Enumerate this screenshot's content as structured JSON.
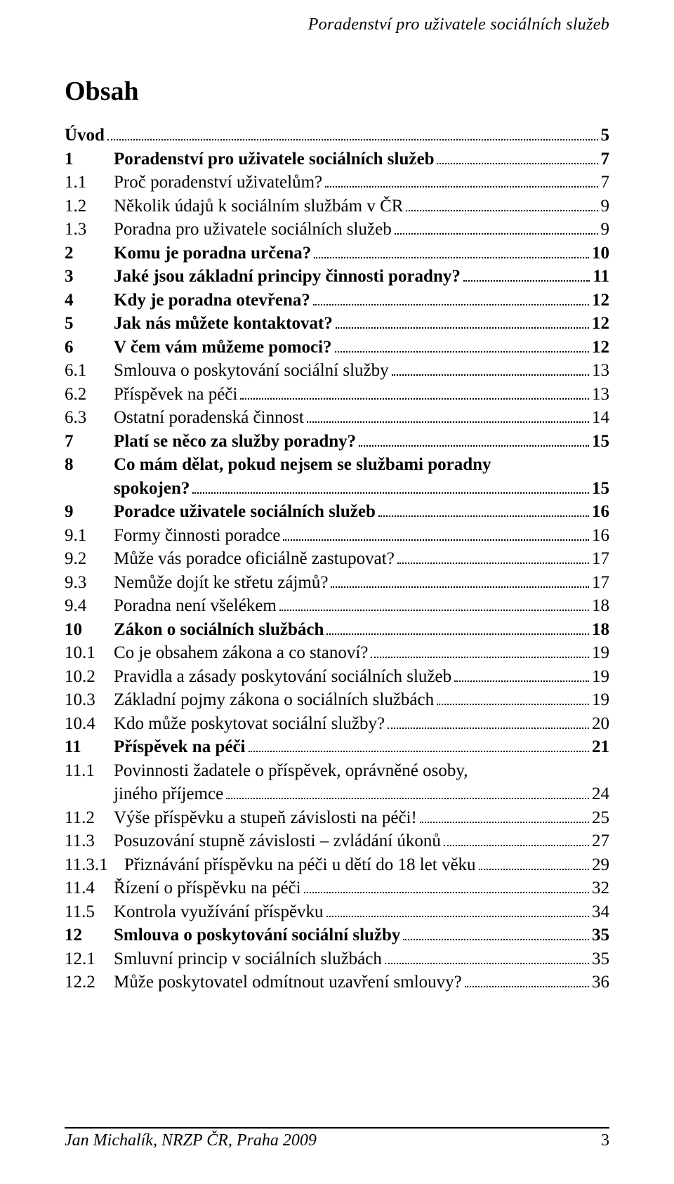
{
  "running_head": "Poradenství pro uživatele sociálních služeb",
  "title": "Obsah",
  "footer": {
    "left": "Jan Michalík, NRZP ČR, Praha 2009",
    "page": "3"
  },
  "toc": [
    {
      "num": "",
      "numClass": "",
      "text": "Úvod",
      "page": "5",
      "bold": true
    },
    {
      "num": "1",
      "numClass": "w-top",
      "text": "Poradenství pro uživatele sociálních služeb",
      "page": "7",
      "bold": true
    },
    {
      "num": "1.1",
      "numClass": "w-sub",
      "text": "Proč poradenství uživatelům?",
      "page": "7",
      "bold": false
    },
    {
      "num": "1.2",
      "numClass": "w-sub",
      "text": "Několik údajů k sociálním službám v ČR",
      "page": "9",
      "bold": false
    },
    {
      "num": "1.3",
      "numClass": "w-sub",
      "text": "Poradna pro uživatele sociálních služeb",
      "page": "9",
      "bold": false
    },
    {
      "num": "2",
      "numClass": "w-top",
      "text": "Komu je poradna určena?",
      "page": "10",
      "bold": true
    },
    {
      "num": "3",
      "numClass": "w-top",
      "text": "Jaké jsou základní principy činnosti poradny?",
      "page": "11",
      "bold": true
    },
    {
      "num": "4",
      "numClass": "w-top",
      "text": "Kdy je poradna otevřena?",
      "page": "12",
      "bold": true
    },
    {
      "num": "5",
      "numClass": "w-top",
      "text": "Jak nás můžete kontaktovat?",
      "page": "12",
      "bold": true
    },
    {
      "num": "6",
      "numClass": "w-top",
      "text": "V čem vám můžeme pomoci?",
      "page": "12",
      "bold": true
    },
    {
      "num": "6.1",
      "numClass": "w-sub",
      "text": "Smlouva o poskytování sociální služby",
      "page": "13",
      "bold": false
    },
    {
      "num": "6.2",
      "numClass": "w-sub",
      "text": "Příspěvek na péči",
      "page": "13",
      "bold": false
    },
    {
      "num": "6.3",
      "numClass": "w-sub",
      "text": "Ostatní poradenská činnost",
      "page": "14",
      "bold": false
    },
    {
      "num": "7",
      "numClass": "w-top",
      "text": "Platí se něco za služby poradny?",
      "page": "15",
      "bold": true
    },
    {
      "num": "8",
      "numClass": "w-top",
      "text": "Co mám dělat, pokud nejsem se službami poradny",
      "page": "",
      "bold": true
    },
    {
      "num": "",
      "numClass": "cont",
      "text": "spokojen?",
      "page": "15",
      "bold": true
    },
    {
      "num": "9",
      "numClass": "w-top",
      "text": "Poradce uživatele sociálních služeb",
      "page": "16",
      "bold": true
    },
    {
      "num": "9.1",
      "numClass": "w-sub",
      "text": "Formy činnosti poradce",
      "page": "16",
      "bold": false
    },
    {
      "num": "9.2",
      "numClass": "w-sub",
      "text": "Může vás poradce oficiálně zastupovat?",
      "page": "17",
      "bold": false
    },
    {
      "num": "9.3",
      "numClass": "w-sub",
      "text": "Nemůže dojít ke střetu zájmů?",
      "page": "17",
      "bold": false
    },
    {
      "num": "9.4",
      "numClass": "w-sub",
      "text": "Poradna není všelékem",
      "page": "18",
      "bold": false
    },
    {
      "num": "10",
      "numClass": "w-top",
      "text": "Zákon o sociálních službách",
      "page": "18",
      "bold": true
    },
    {
      "num": "10.1",
      "numClass": "w-sub",
      "text": "Co je obsahem zákona a co stanoví?",
      "page": "19",
      "bold": false
    },
    {
      "num": "10.2",
      "numClass": "w-sub",
      "text": "Pravidla a zásady poskytování sociálních služeb",
      "page": "19",
      "bold": false
    },
    {
      "num": "10.3",
      "numClass": "w-sub",
      "text": "Základní pojmy zákona o sociálních službách",
      "page": "19",
      "bold": false
    },
    {
      "num": "10.4",
      "numClass": "w-sub",
      "text": "Kdo může poskytovat sociální služby?",
      "page": "20",
      "bold": false
    },
    {
      "num": "11",
      "numClass": "w-top",
      "text": "Příspěvek na péči",
      "page": "21",
      "bold": true
    },
    {
      "num": "11.1",
      "numClass": "w-sub",
      "text": "Povinnosti žadatele o příspěvek, oprávněné osoby,",
      "page": "",
      "bold": false
    },
    {
      "num": "",
      "numClass": "cont",
      "text": "jiného příjemce",
      "page": "24",
      "bold": false
    },
    {
      "num": "11.2",
      "numClass": "w-sub",
      "text": "Výše příspěvku a stupeň závislosti na péči!",
      "page": "25",
      "bold": false
    },
    {
      "num": "11.3",
      "numClass": "w-sub",
      "text": "Posuzování stupně závislosti – zvládání úkonů",
      "page": "27",
      "bold": false
    },
    {
      "num": "11.3.1",
      "numClass": "w-sub3",
      "text": "Přiznávání příspěvku na péči u dětí do 18 let věku",
      "page": "29",
      "bold": false
    },
    {
      "num": "11.4",
      "numClass": "w-sub",
      "text": "Řízení o příspěvku na péči",
      "page": "32",
      "bold": false
    },
    {
      "num": "11.5",
      "numClass": "w-sub",
      "text": "Kontrola využívání příspěvku",
      "page": "34",
      "bold": false
    },
    {
      "num": "12",
      "numClass": "w-top",
      "text": "Smlouva o poskytování sociální služby",
      "page": "35",
      "bold": true
    },
    {
      "num": "12.1",
      "numClass": "w-sub",
      "text": "Smluvní princip v sociálních službách",
      "page": "35",
      "bold": false
    },
    {
      "num": "12.2",
      "numClass": "w-sub",
      "text": "Může poskytovatel odmítnout uzavření smlouvy?",
      "page": "36",
      "bold": false
    }
  ]
}
